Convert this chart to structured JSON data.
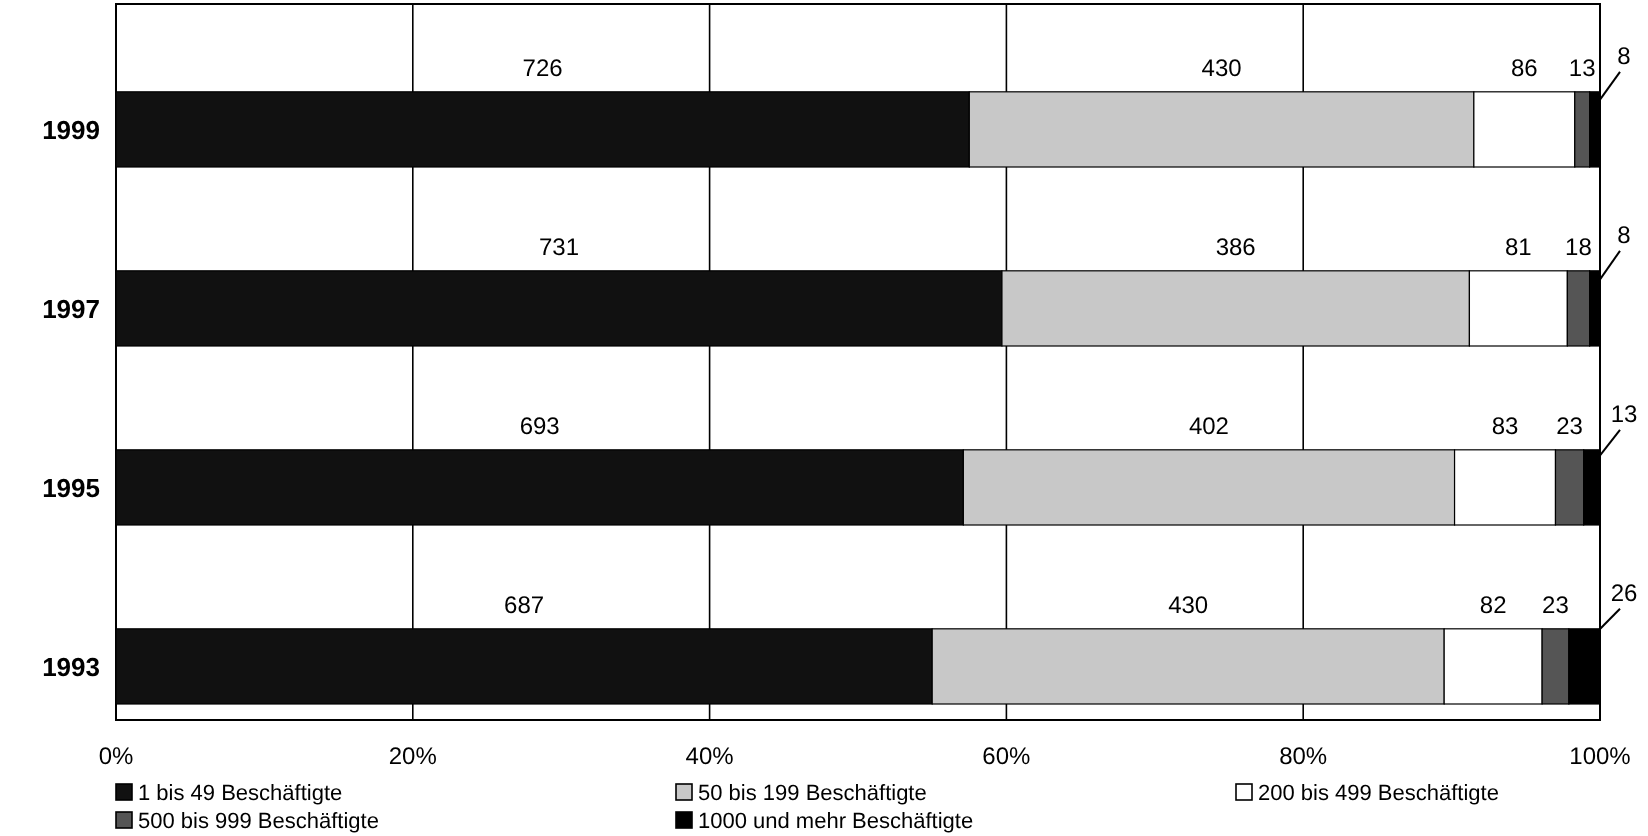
{
  "chart_data": {
    "type": "bar",
    "orientation": "horizontal",
    "stacked": true,
    "categories": [
      "1999",
      "1997",
      "1995",
      "1993"
    ],
    "series": [
      {
        "name": "1 bis 49 Beschäftigte",
        "color": "#111111",
        "values": [
          57.5,
          59.7,
          57.1,
          55.0
        ]
      },
      {
        "name": "50 bis 199 Beschäftigte",
        "color": "#c8c8c8",
        "values": [
          34.0,
          31.5,
          33.1,
          34.5
        ]
      },
      {
        "name": "200 bis 499 Beschäftigte",
        "color": "#ffffff",
        "values": [
          6.8,
          6.6,
          6.8,
          6.6
        ]
      },
      {
        "name": "500 bis 999 Beschäftigte",
        "color": "#555555",
        "values": [
          1.0,
          1.5,
          1.9,
          1.8
        ]
      },
      {
        "name": "1000 und mehr Beschäftigte",
        "color": "#000000",
        "values": [
          0.6,
          0.7,
          1.1,
          2.1
        ]
      }
    ],
    "annotations": [
      "726",
      "430",
      "86",
      "13",
      "8",
      "731",
      "386",
      "81",
      "18",
      "8",
      "693",
      "402",
      "83",
      "23",
      "13",
      "687",
      "430",
      "82",
      "23",
      "26"
    ],
    "xlim": [
      0,
      100
    ],
    "xticks": [
      {
        "value": 0,
        "label": "0%"
      },
      {
        "value": 20,
        "label": "20%"
      },
      {
        "value": 40,
        "label": "40%"
      },
      {
        "value": 60,
        "label": "60%"
      },
      {
        "value": 80,
        "label": "80%"
      },
      {
        "value": 100,
        "label": "100%"
      }
    ],
    "grid": "x",
    "legend": "bottom"
  }
}
